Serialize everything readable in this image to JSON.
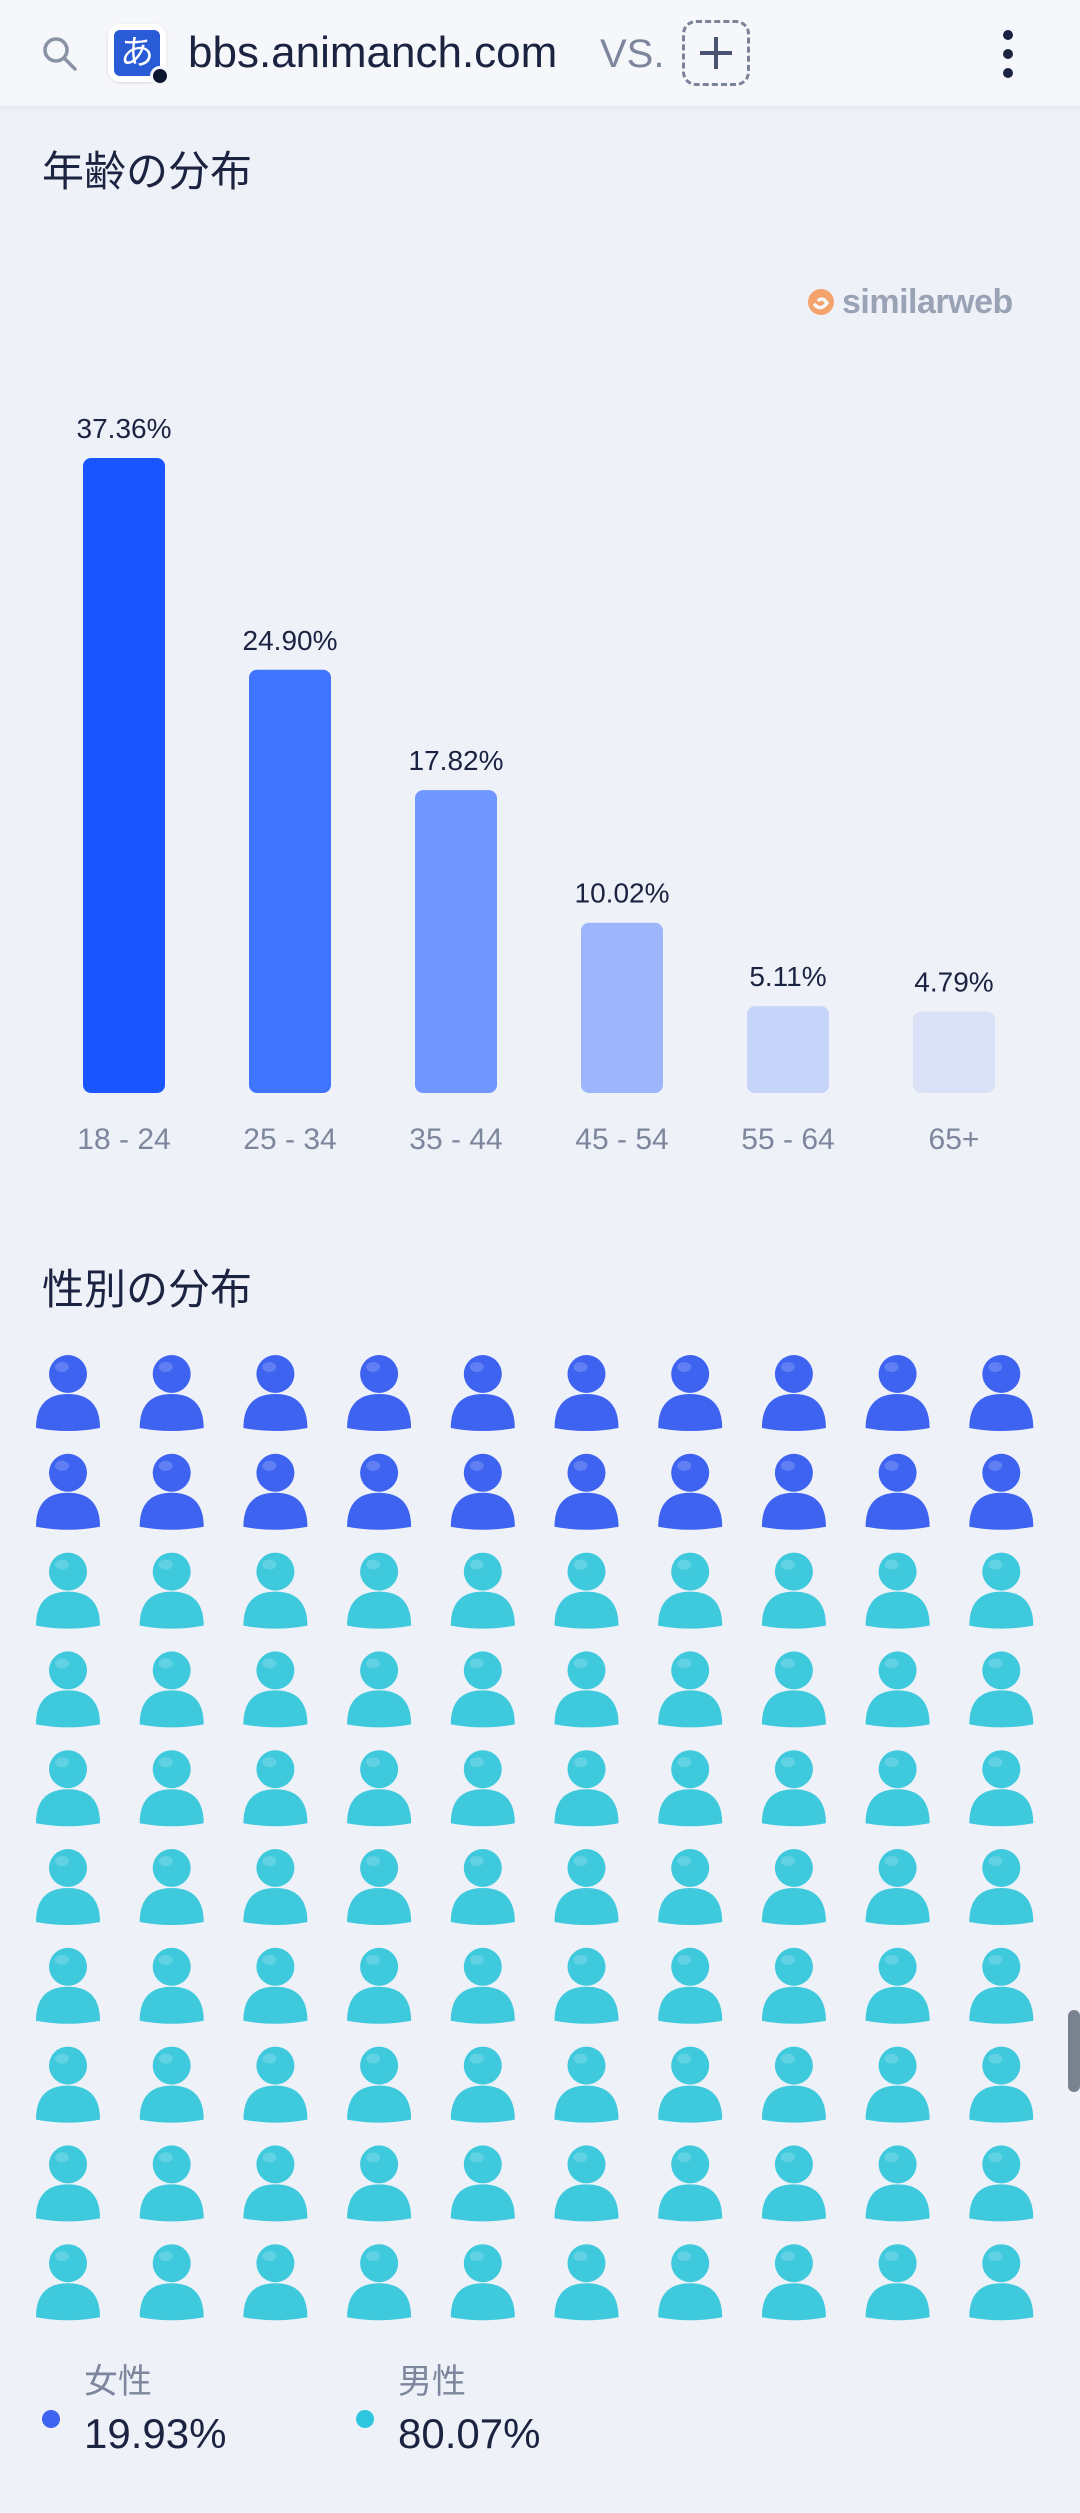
{
  "topbar": {
    "search_icon": "search-icon",
    "site_icon_glyph": "あ",
    "site_name": "bbs.animanch.com",
    "vs_label": "VS.",
    "add_icon": "plus-icon",
    "more_icon": "more-vert-icon"
  },
  "age_section": {
    "heading": "年齢の分布",
    "brand": "similarweb"
  },
  "chart_data": {
    "type": "bar",
    "categories": [
      "18 - 24",
      "25 - 34",
      "35 - 44",
      "45 - 54",
      "55 - 64",
      "65+"
    ],
    "values": [
      37.36,
      24.9,
      17.82,
      10.02,
      5.11,
      4.79
    ],
    "value_labels": [
      "37.36%",
      "24.90%",
      "17.82%",
      "10.02%",
      "5.11%",
      "4.79%"
    ],
    "bar_colors": [
      "#1a56ff",
      "#3f74ff",
      "#7096ff",
      "#9db5fb",
      "#c7d4fa",
      "#dbe2f7"
    ],
    "grid": false
  },
  "gender_section": {
    "heading": "性別の分布",
    "female_icons": 20,
    "male_icons": 80,
    "female_color": "#3d63f0",
    "male_color": "#3fc9dd"
  },
  "legend": {
    "female": {
      "label": "女性",
      "value": "19.93%",
      "color": "#3d63f0"
    },
    "male": {
      "label": "男性",
      "value": "80.07%",
      "color": "#2fc7e0"
    }
  }
}
